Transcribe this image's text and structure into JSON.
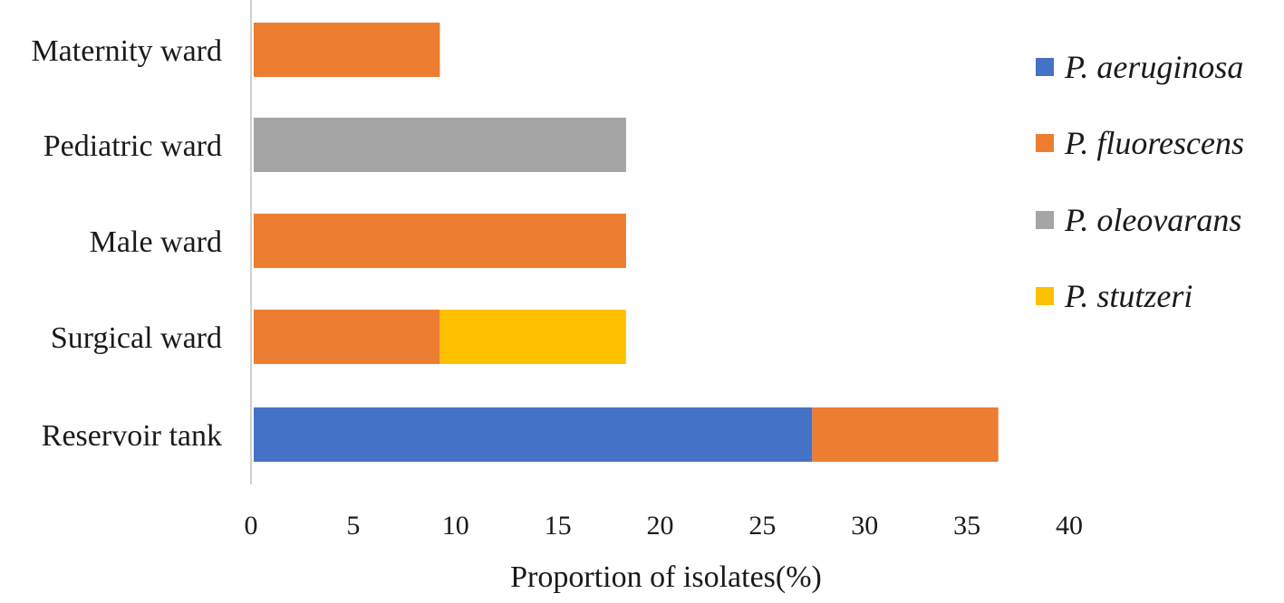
{
  "chart_data": {
    "type": "bar",
    "orientation": "horizontal",
    "stacked": true,
    "title": "",
    "xlabel": "Proportion of isolates(%)",
    "ylabel": "",
    "xlim": [
      0,
      40
    ],
    "xticks": [
      0,
      5,
      10,
      15,
      20,
      25,
      30,
      35,
      40
    ],
    "categories": [
      "Maternity ward",
      "Pediatric ward",
      "Male ward",
      "Surgical ward",
      "Reservoir tank"
    ],
    "series": [
      {
        "name": "P. aeruginosa",
        "color": "#4472C4",
        "values": [
          0,
          0,
          0,
          0,
          27.3
        ]
      },
      {
        "name": "P. fluorescens",
        "color": "#ED7D31",
        "values": [
          9.1,
          0,
          18.2,
          9.1,
          9.1
        ]
      },
      {
        "name": "P. oleovarans",
        "color": "#A5A5A5",
        "values": [
          0,
          18.2,
          0,
          0,
          0
        ]
      },
      {
        "name": "P. stutzeri",
        "color": "#FFC000",
        "values": [
          0,
          0,
          0,
          9.1,
          0
        ]
      }
    ],
    "grid": false,
    "legend_position": "right"
  }
}
